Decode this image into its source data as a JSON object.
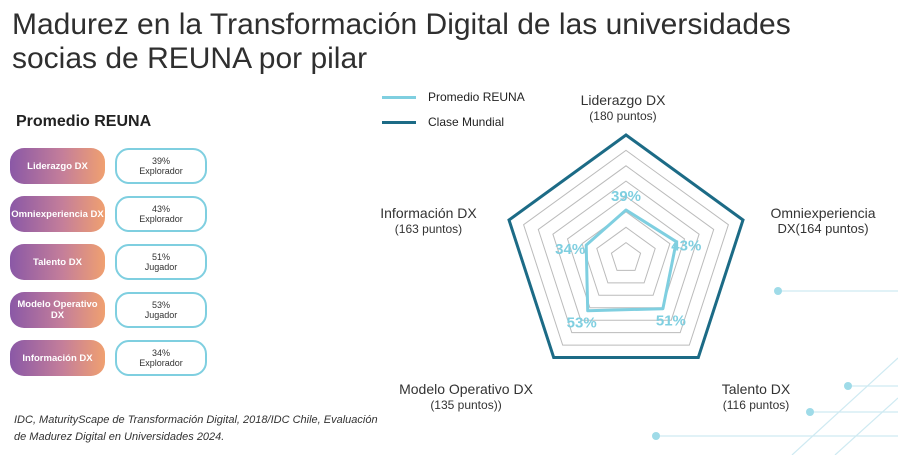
{
  "title": "Madurez en la Transformación Digital de las universidades socias de REUNA por pilar",
  "left_panel": {
    "heading": "Promedio REUNA",
    "items": [
      {
        "pillar": "Liderazgo DX",
        "percent": "39%",
        "level": "Explorador"
      },
      {
        "pillar": "Omniexperiencia DX",
        "percent": "43%",
        "level": "Explorador"
      },
      {
        "pillar": "Talento DX",
        "percent": "51%",
        "level": "Jugador"
      },
      {
        "pillar": "Modelo Operativo DX",
        "percent": "53%",
        "level": "Jugador"
      },
      {
        "pillar": "Información DX",
        "percent": "34%",
        "level": "Explorador"
      }
    ]
  },
  "source": "IDC, MaturityScape de Transformación Digital, 2018/IDC Chile, Evaluación de Madurez Digital en Universidades 2024.",
  "legend": {
    "promedio": "Promedio REUNA",
    "clase": "Clase Mundial"
  },
  "colors": {
    "promedio": "#7fcfe0",
    "clase": "#1c6b86",
    "grid": "#bbbbbb",
    "pill_start": "#8a58a6",
    "pill_end": "#f0a070"
  },
  "axis_labels": [
    {
      "name": "Liderazgo DX",
      "points": "(180 puntos)"
    },
    {
      "name": "Omniexperiencia",
      "points": "DX(164 puntos)"
    },
    {
      "name": "Talento DX",
      "points": "(116 puntos)"
    },
    {
      "name": "Modelo Operativo DX",
      "points": "(135 puntos))"
    },
    {
      "name": "Información DX",
      "points": "(163 puntos)"
    }
  ],
  "chart_data": {
    "type": "radar",
    "axes": [
      "Liderazgo DX",
      "Omniexperiencia DX",
      "Talento DX",
      "Modelo Operativo DX",
      "Información DX"
    ],
    "range": [
      0,
      100
    ],
    "grid_levels": 8,
    "series": [
      {
        "name": "Promedio REUNA",
        "values": [
          39,
          43,
          51,
          53,
          34
        ],
        "labels": [
          "39%",
          "43%",
          "51%",
          "53%",
          "34%"
        ]
      },
      {
        "name": "Clase Mundial",
        "values": [
          100,
          100,
          100,
          100,
          100
        ]
      }
    ]
  }
}
